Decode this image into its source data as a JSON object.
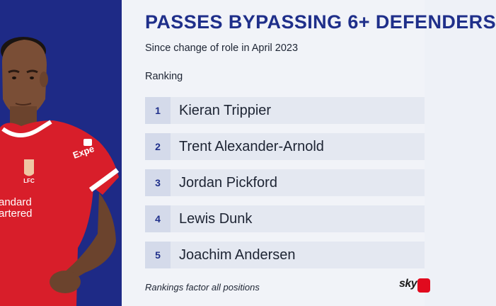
{
  "colors": {
    "brand_navy": "#1f2f8a",
    "left_panel_bg": "#1e2a86",
    "shirt_red": "#d81e2a",
    "logo_red": "#e10a1e"
  },
  "graphic": {
    "title": "PASSES BYPASSING 6+ DEFENDERS",
    "subtitle": "Since change of role in April 2023",
    "section_label": "Ranking",
    "rankings": [
      {
        "rank": "1",
        "name": "Kieran Trippier"
      },
      {
        "rank": "2",
        "name": "Trent Alexander-Arnold"
      },
      {
        "rank": "3",
        "name": "Jordan Pickford"
      },
      {
        "rank": "4",
        "name": "Lewis Dunk"
      },
      {
        "rank": "5",
        "name": "Joachim Andersen"
      }
    ],
    "footnote": "Rankings factor all positions"
  },
  "player_image": {
    "shirt_sponsor_lines": [
      "andard",
      "artered"
    ],
    "sleeve_sponsor": "Expe",
    "crest_text": "LFC"
  },
  "logo": {
    "text": "sky",
    "icon": "sky-sports-logo-icon"
  }
}
